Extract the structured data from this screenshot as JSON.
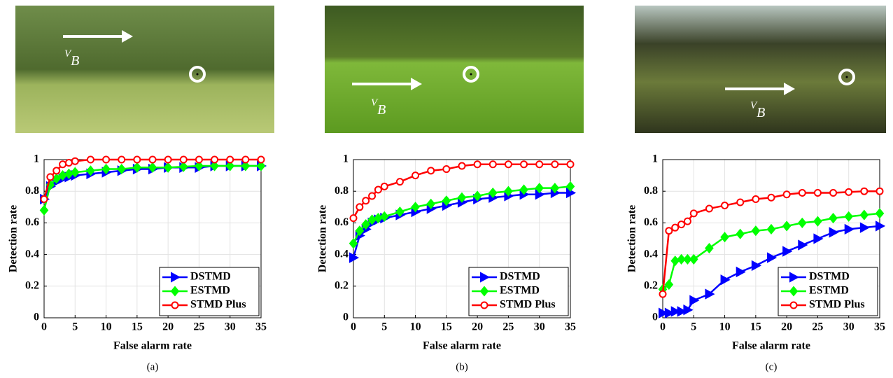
{
  "photos": [
    {
      "vector_label": "V",
      "vector_subscript": "B"
    },
    {
      "vector_label": "V",
      "vector_subscript": "B"
    },
    {
      "vector_label": "V",
      "vector_subscript": "B"
    }
  ],
  "chart_data": [
    {
      "type": "line",
      "caption": "(a)",
      "xlabel": "False alarm rate",
      "ylabel": "Detection rate",
      "xlim": [
        0,
        35
      ],
      "ylim": [
        0,
        1
      ],
      "xticks": [
        0,
        5,
        10,
        15,
        20,
        25,
        30,
        35
      ],
      "yticks": [
        0,
        0.2,
        0.4,
        0.6,
        0.8,
        1
      ],
      "grid": true,
      "legend": "lower right",
      "x": [
        0,
        1,
        2,
        3,
        4,
        5,
        7.5,
        10,
        12.5,
        15,
        17.5,
        20,
        22.5,
        25,
        27.5,
        30,
        32.5,
        35
      ],
      "series": [
        {
          "name": "DSTMD",
          "color": "#0000ff",
          "marker": "triangle-right",
          "values": [
            0.75,
            0.83,
            0.86,
            0.88,
            0.89,
            0.9,
            0.91,
            0.92,
            0.93,
            0.94,
            0.94,
            0.95,
            0.95,
            0.95,
            0.96,
            0.96,
            0.96,
            0.96
          ]
        },
        {
          "name": "ESTMD",
          "color": "#00ff00",
          "marker": "diamond",
          "values": [
            0.68,
            0.84,
            0.88,
            0.9,
            0.91,
            0.92,
            0.93,
            0.94,
            0.94,
            0.95,
            0.95,
            0.95,
            0.955,
            0.96,
            0.96,
            0.96,
            0.96,
            0.96
          ]
        },
        {
          "name": "STMD Plus",
          "color": "#ff0000",
          "marker": "circle",
          "values": [
            0.75,
            0.89,
            0.93,
            0.97,
            0.98,
            0.99,
            1,
            1,
            1,
            1,
            1,
            1,
            1,
            1,
            1,
            1,
            1,
            1
          ]
        }
      ]
    },
    {
      "type": "line",
      "caption": "(b)",
      "xlabel": "False alarm rate",
      "ylabel": "Detection rate",
      "xlim": [
        0,
        35
      ],
      "ylim": [
        0,
        1
      ],
      "xticks": [
        0,
        5,
        10,
        15,
        20,
        25,
        30,
        35
      ],
      "yticks": [
        0,
        0.2,
        0.4,
        0.6,
        0.8,
        1
      ],
      "grid": true,
      "legend": "lower right",
      "x": [
        0,
        1,
        2,
        3,
        4,
        5,
        7.5,
        10,
        12.5,
        15,
        17.5,
        20,
        22.5,
        25,
        27.5,
        30,
        32.5,
        35
      ],
      "series": [
        {
          "name": "DSTMD",
          "color": "#0000ff",
          "marker": "triangle-right",
          "values": [
            0.38,
            0.52,
            0.56,
            0.6,
            0.62,
            0.63,
            0.65,
            0.67,
            0.69,
            0.71,
            0.73,
            0.75,
            0.76,
            0.77,
            0.78,
            0.78,
            0.79,
            0.79
          ]
        },
        {
          "name": "ESTMD",
          "color": "#00ff00",
          "marker": "diamond",
          "values": [
            0.47,
            0.55,
            0.59,
            0.62,
            0.63,
            0.64,
            0.67,
            0.7,
            0.72,
            0.74,
            0.76,
            0.77,
            0.79,
            0.8,
            0.81,
            0.82,
            0.82,
            0.83
          ]
        },
        {
          "name": "STMD Plus",
          "color": "#ff0000",
          "marker": "circle",
          "values": [
            0.63,
            0.7,
            0.74,
            0.77,
            0.81,
            0.83,
            0.86,
            0.9,
            0.93,
            0.94,
            0.96,
            0.97,
            0.97,
            0.97,
            0.97,
            0.97,
            0.97,
            0.97
          ]
        }
      ]
    },
    {
      "type": "line",
      "caption": "(c)",
      "xlabel": "False alarm rate",
      "ylabel": "Detection rate",
      "xlim": [
        0,
        35
      ],
      "ylim": [
        0,
        1
      ],
      "xticks": [
        0,
        5,
        10,
        15,
        20,
        25,
        30,
        35
      ],
      "yticks": [
        0,
        0.2,
        0.4,
        0.6,
        0.8,
        1
      ],
      "grid": true,
      "legend": "lower right",
      "x": [
        0,
        1,
        2,
        3,
        4,
        5,
        7.5,
        10,
        12.5,
        15,
        17.5,
        20,
        22.5,
        25,
        27.5,
        30,
        32.5,
        35
      ],
      "series": [
        {
          "name": "DSTMD",
          "color": "#0000ff",
          "marker": "triangle-right",
          "values": [
            0.03,
            0.03,
            0.04,
            0.04,
            0.05,
            0.11,
            0.15,
            0.24,
            0.29,
            0.33,
            0.38,
            0.42,
            0.46,
            0.5,
            0.54,
            0.56,
            0.57,
            0.58
          ]
        },
        {
          "name": "ESTMD",
          "color": "#00ff00",
          "marker": "diamond",
          "values": [
            0.18,
            0.21,
            0.36,
            0.37,
            0.37,
            0.37,
            0.44,
            0.51,
            0.53,
            0.55,
            0.56,
            0.58,
            0.6,
            0.61,
            0.63,
            0.64,
            0.65,
            0.66
          ]
        },
        {
          "name": "STMD Plus",
          "color": "#ff0000",
          "marker": "circle",
          "values": [
            0.15,
            0.55,
            0.57,
            0.59,
            0.61,
            0.66,
            0.69,
            0.71,
            0.73,
            0.75,
            0.76,
            0.78,
            0.79,
            0.79,
            0.79,
            0.795,
            0.8,
            0.8
          ]
        }
      ]
    }
  ]
}
